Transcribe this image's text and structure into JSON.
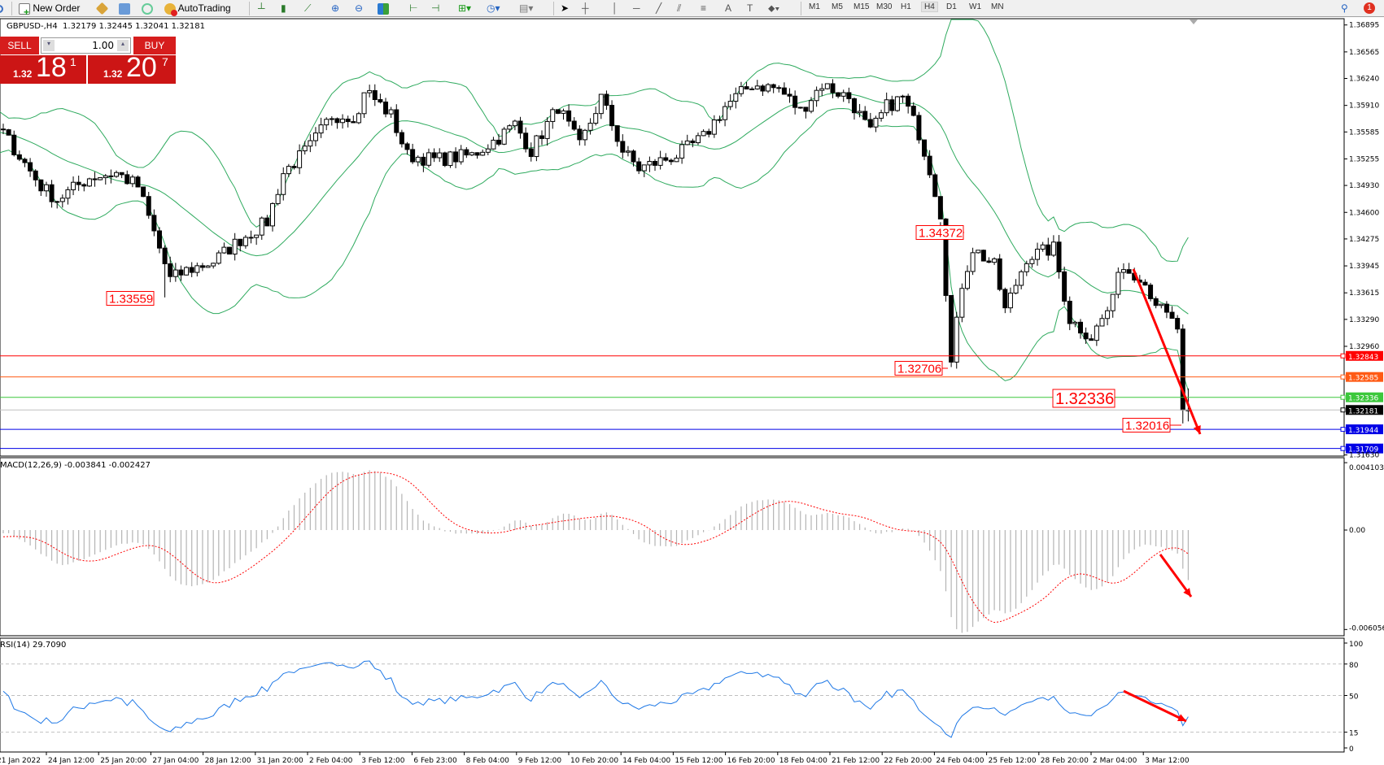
{
  "toolbar": {
    "new_order": "New Order",
    "autotrading": "AutoTrading",
    "timeframes": [
      "M1",
      "M5",
      "M15",
      "M30",
      "H1",
      "H4",
      "D1",
      "W1",
      "MN"
    ],
    "active_timeframe": "H4",
    "notification_count": "1"
  },
  "chart_header": {
    "symbol": "GBPUSD-,H4",
    "ohlc": "1.32179 1.32445 1.32041 1.32181"
  },
  "trade_panel": {
    "sell_label": "SELL",
    "buy_label": "BUY",
    "lot": "1.00",
    "sell_big": "1.32",
    "sell_pips": "18",
    "sell_frac": "1",
    "buy_big": "1.32",
    "buy_pips": "20",
    "buy_frac": "7"
  },
  "price_axis": {
    "ticks": [
      "1.36895",
      "1.36565",
      "1.36240",
      "1.35910",
      "1.35585",
      "1.35255",
      "1.34930",
      "1.34600",
      "1.34275",
      "1.33945",
      "1.33615",
      "1.33290",
      "1.32960",
      "1.31630"
    ]
  },
  "price_lines": [
    {
      "value": "1.32843",
      "color": "#ff0000"
    },
    {
      "value": "1.32585",
      "color": "#ff5a14"
    },
    {
      "value": "1.32336",
      "color": "#3cc83c"
    },
    {
      "value": "1.32181",
      "color": "#000000",
      "line_color": "#c0c0c0"
    },
    {
      "value": "1.31944",
      "color": "#0000e6"
    },
    {
      "value": "1.31709",
      "color": "#0000e6"
    }
  ],
  "annotations": [
    {
      "text": "1.33559",
      "size": "small"
    },
    {
      "text": "1.34372",
      "size": "small"
    },
    {
      "text": "1.32706",
      "size": "small"
    },
    {
      "text": "1.32336",
      "size": "large"
    },
    {
      "text": "1.32016",
      "size": "small"
    }
  ],
  "macd": {
    "label": "MACD(12,26,9) -0.003841 -0.002427",
    "ticks": [
      "0.004103",
      "0.00",
      "-0.006056"
    ]
  },
  "rsi": {
    "label": "RSI(14) 29.7090",
    "ticks": [
      "100",
      "80",
      "50",
      "15",
      "0"
    ],
    "levels": [
      80,
      50,
      15
    ]
  },
  "time_axis": [
    "21 Jan 2022",
    "24 Jan 12:00",
    "25 Jan 20:00",
    "27 Jan 04:00",
    "28 Jan 12:00",
    "31 Jan 20:00",
    "2 Feb 04:00",
    "3 Feb 12:00",
    "6 Feb 23:00",
    "8 Feb 04:00",
    "9 Feb 12:00",
    "10 Feb 20:00",
    "14 Feb 04:00",
    "15 Feb 12:00",
    "16 Feb 20:00",
    "18 Feb 04:00",
    "21 Feb 12:00",
    "22 Feb 20:00",
    "24 Feb 04:00",
    "25 Feb 12:00",
    "28 Feb 20:00",
    "2 Mar 04:00",
    "3 Mar 12:00"
  ],
  "chart_data": {
    "type": "candlestick",
    "symbol": "GBPUSD",
    "timeframe": "H4",
    "last_candle": {
      "open": 1.32179,
      "high": 1.32445,
      "low": 1.32041,
      "close": 1.32181
    },
    "price_range": [
      1.3163,
      1.36895
    ],
    "close_path": [
      [
        0,
        1.35571
      ],
      [
        7,
        1.34919
      ],
      [
        10,
        1.34757
      ],
      [
        16,
        1.35028
      ],
      [
        21,
        1.35082
      ],
      [
        25,
        1.34919
      ],
      [
        29,
        1.3416
      ],
      [
        31,
        1.3378
      ],
      [
        34,
        1.33888
      ],
      [
        39,
        1.33997
      ],
      [
        44,
        1.34268
      ],
      [
        49,
        1.34485
      ],
      [
        52,
        1.35082
      ],
      [
        57,
        1.35408
      ],
      [
        61,
        1.35788
      ],
      [
        66,
        1.35788
      ],
      [
        67,
        1.36113
      ],
      [
        72,
        1.35788
      ],
      [
        75,
        1.35299
      ],
      [
        80,
        1.35245
      ],
      [
        87,
        1.35299
      ],
      [
        92,
        1.35516
      ],
      [
        95,
        1.35679
      ],
      [
        98,
        1.35354
      ],
      [
        103,
        1.35896
      ],
      [
        107,
        1.35408
      ],
      [
        111,
        1.36005
      ],
      [
        115,
        1.35354
      ],
      [
        118,
        1.35136
      ],
      [
        125,
        1.35299
      ],
      [
        130,
        1.35516
      ],
      [
        134,
        1.35896
      ],
      [
        139,
        1.36168
      ],
      [
        144,
        1.36113
      ],
      [
        148,
        1.35842
      ],
      [
        152,
        1.36168
      ],
      [
        157,
        1.36005
      ],
      [
        161,
        1.35571
      ],
      [
        164,
        1.35896
      ],
      [
        167,
        1.36005
      ],
      [
        170,
        1.35571
      ],
      [
        172,
        1.35136
      ],
      [
        174,
        1.34594
      ],
      [
        176,
        1.32748
      ],
      [
        178,
        1.33725
      ],
      [
        180,
        1.3416
      ],
      [
        184,
        1.33942
      ],
      [
        186,
        1.334
      ],
      [
        190,
        1.34051
      ],
      [
        195,
        1.3416
      ],
      [
        198,
        1.33291
      ],
      [
        202,
        1.33074
      ],
      [
        206,
        1.33508
      ],
      [
        207,
        1.33942
      ],
      [
        211,
        1.33834
      ],
      [
        215,
        1.334
      ],
      [
        218,
        1.33183
      ],
      [
        219,
        1.3225
      ],
      [
        220,
        1.32181
      ]
    ],
    "indicators": [
      "Bollinger Bands(20,2)",
      "MACD(12,26,9)",
      "RSI(14)"
    ],
    "colors": {
      "bands": "#2eaa5e",
      "macd_hist": "#b4b4b4",
      "macd_signal": "#ff0000",
      "rsi": "#1e78e6",
      "arrows": "#ff0000"
    }
  }
}
